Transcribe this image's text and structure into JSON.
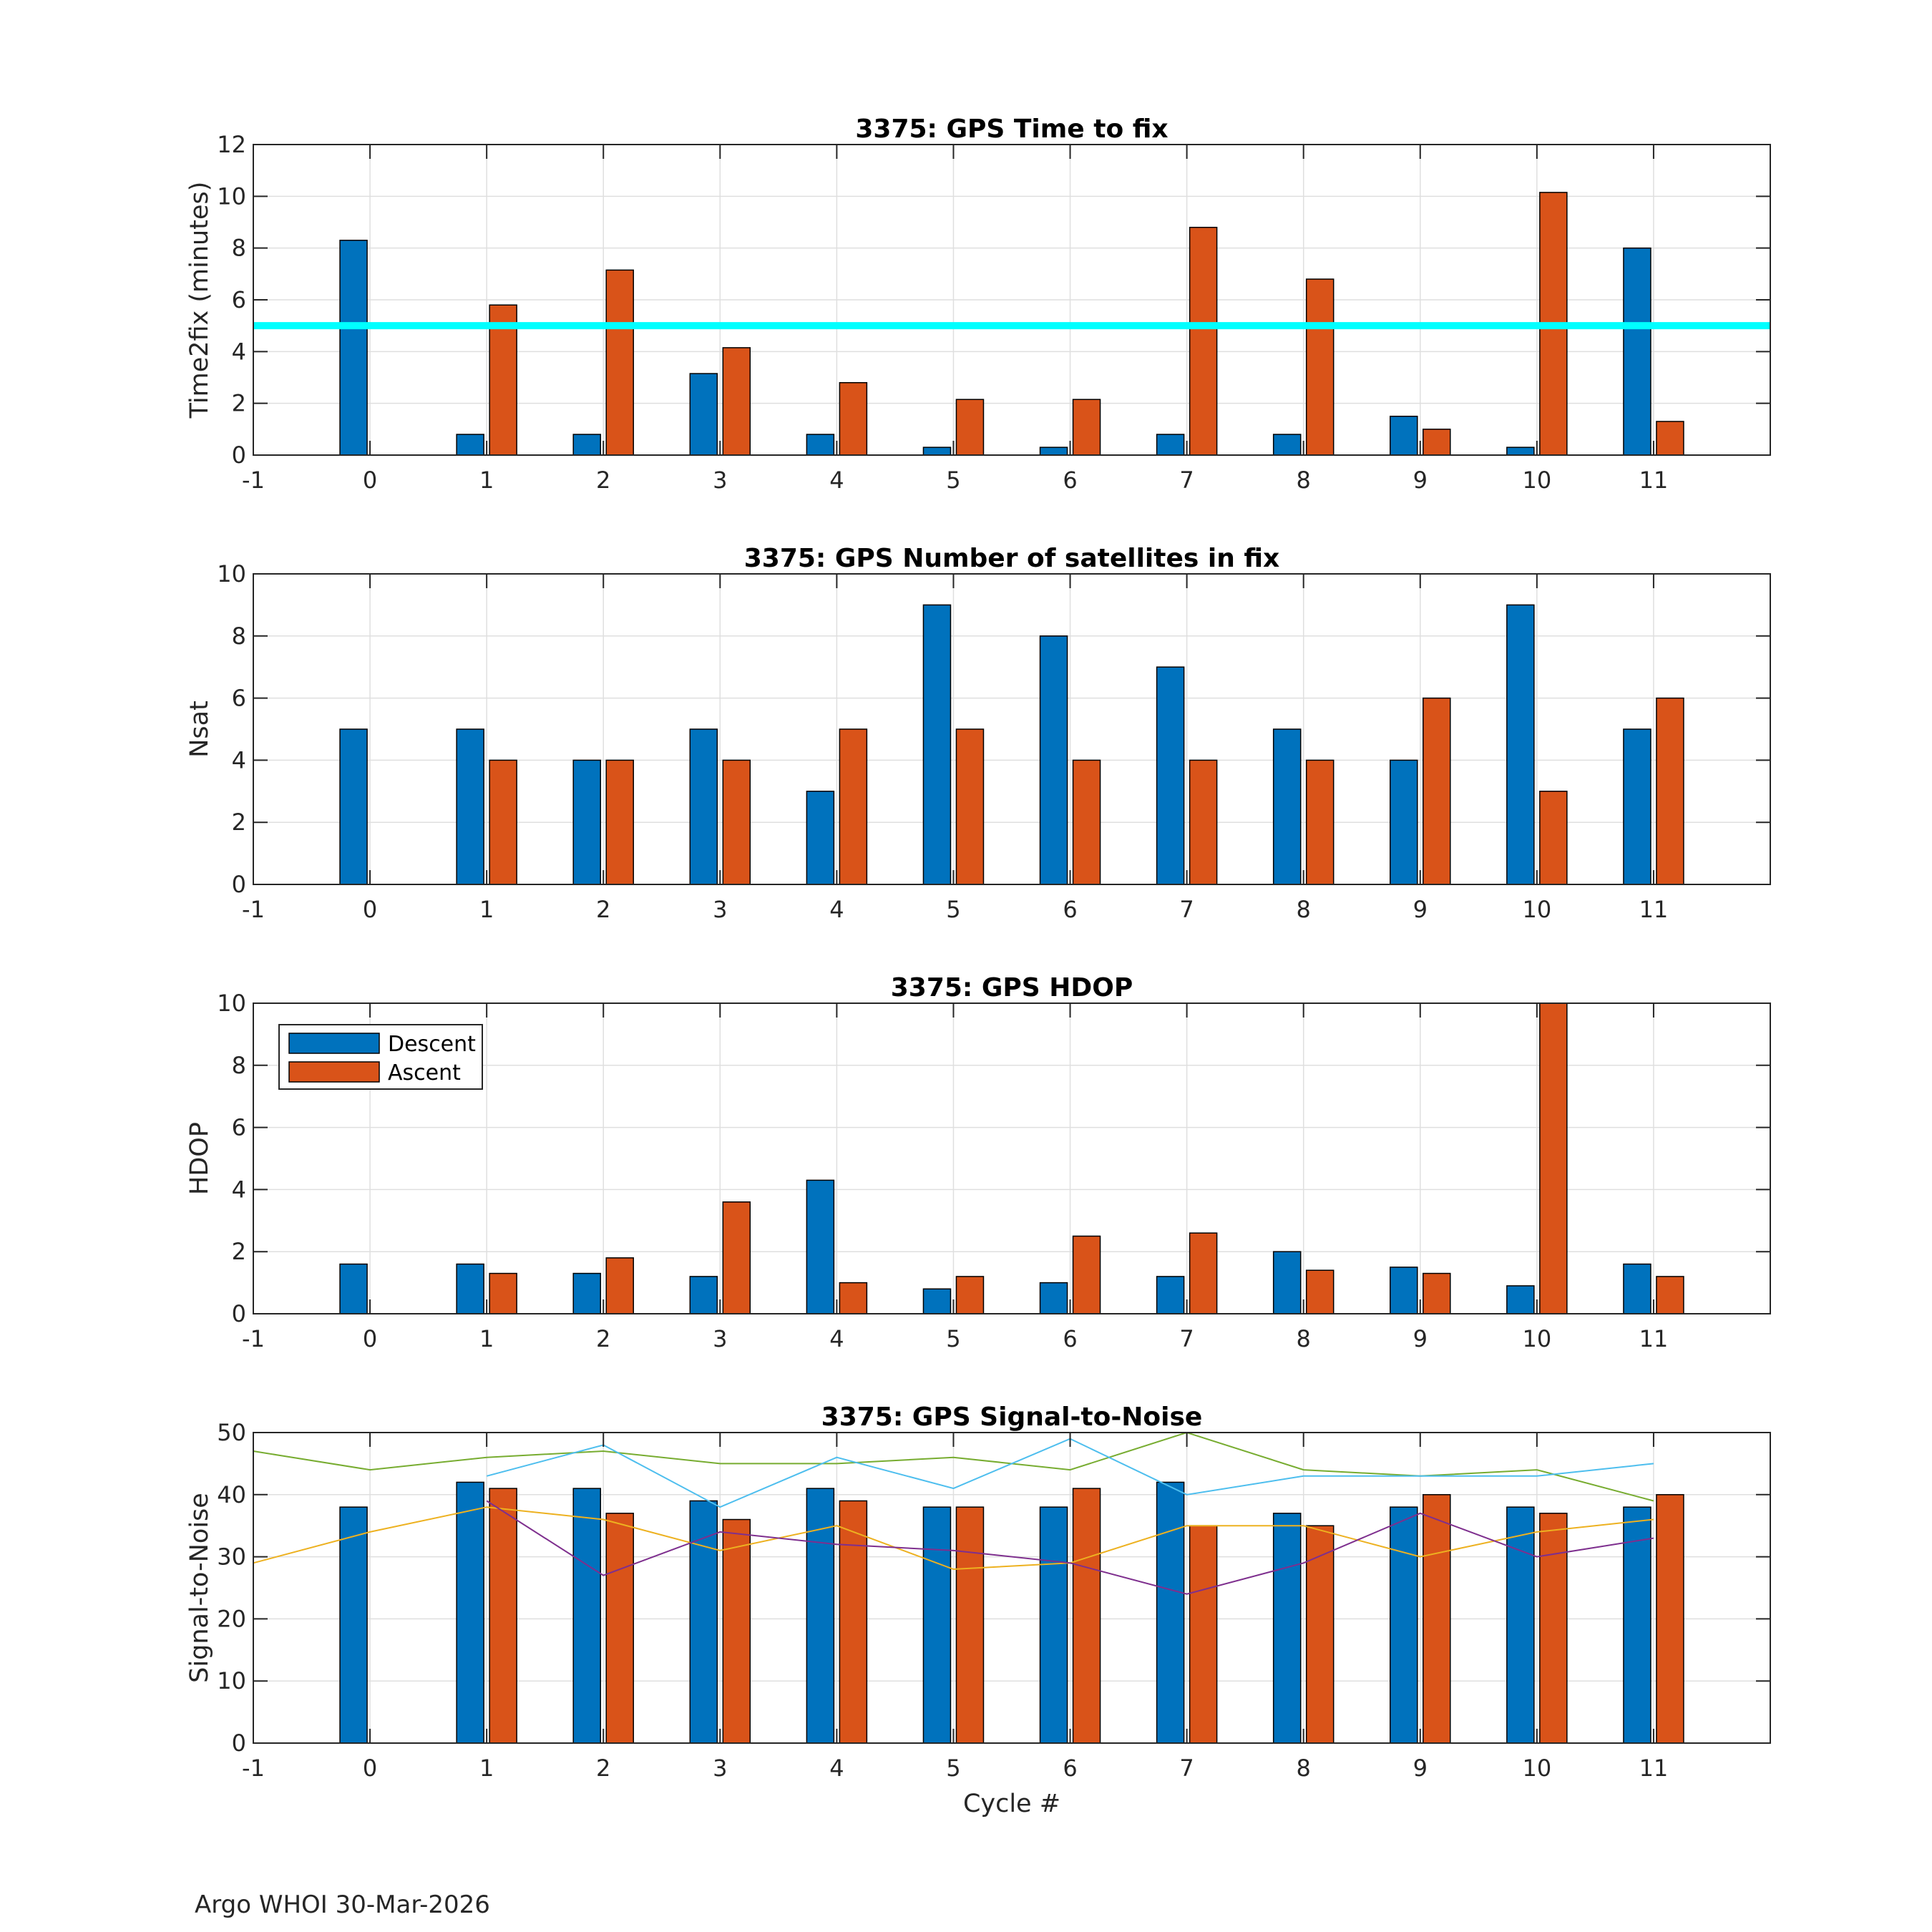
{
  "footer": "Argo WHOI 30-Mar-2026",
  "colors": {
    "descent": "#0072BD",
    "ascent": "#D95319",
    "threshold": "#00FFFF",
    "axis": "#262626",
    "grid": "#DFDFDF",
    "snr_lines": [
      "#77AC30",
      "#4DBEEE",
      "#EDB120",
      "#7E2F8E"
    ]
  },
  "chart_data": [
    {
      "type": "bar",
      "title": "3375: GPS Time to fix",
      "xlabel": "",
      "ylabel": "Time2fix (minutes)",
      "xlim": [
        -1,
        12
      ],
      "ylim": [
        0,
        12
      ],
      "xticks": [
        -1,
        0,
        1,
        2,
        3,
        4,
        5,
        6,
        7,
        8,
        9,
        10,
        11
      ],
      "yticks": [
        0,
        2,
        4,
        6,
        8,
        10,
        12
      ],
      "grid": true,
      "categories": [
        0,
        1,
        2,
        3,
        4,
        5,
        6,
        7,
        8,
        9,
        10,
        11
      ],
      "series": [
        {
          "name": "Descent",
          "values": [
            8.3,
            0.8,
            0.8,
            3.15,
            0.8,
            0.3,
            0.3,
            0.8,
            0.8,
            1.5,
            0.3,
            8.0
          ]
        },
        {
          "name": "Ascent",
          "values": [
            null,
            5.8,
            7.15,
            4.15,
            2.8,
            2.15,
            2.15,
            8.8,
            6.8,
            1.0,
            10.15,
            1.3
          ]
        }
      ],
      "hline": {
        "y": 5,
        "color": "#00FFFF"
      }
    },
    {
      "type": "bar",
      "title": "3375: GPS Number of satellites in fix",
      "xlabel": "",
      "ylabel": "Nsat",
      "xlim": [
        -1,
        12
      ],
      "ylim": [
        0,
        10
      ],
      "xticks": [
        -1,
        0,
        1,
        2,
        3,
        4,
        5,
        6,
        7,
        8,
        9,
        10,
        11
      ],
      "yticks": [
        0,
        2,
        4,
        6,
        8,
        10
      ],
      "grid": true,
      "categories": [
        0,
        1,
        2,
        3,
        4,
        5,
        6,
        7,
        8,
        9,
        10,
        11
      ],
      "series": [
        {
          "name": "Descent",
          "values": [
            5,
            5,
            4,
            5,
            3,
            9,
            8,
            7,
            5,
            4,
            9,
            5
          ]
        },
        {
          "name": "Ascent",
          "values": [
            null,
            4,
            4,
            4,
            5,
            5,
            4,
            4,
            4,
            6,
            3,
            6
          ]
        }
      ]
    },
    {
      "type": "bar",
      "title": "3375: GPS HDOP",
      "xlabel": "",
      "ylabel": "HDOP",
      "xlim": [
        -1,
        12
      ],
      "ylim": [
        0,
        10
      ],
      "xticks": [
        -1,
        0,
        1,
        2,
        3,
        4,
        5,
        6,
        7,
        8,
        9,
        10,
        11
      ],
      "yticks": [
        0,
        2,
        4,
        6,
        8,
        10
      ],
      "grid": true,
      "legend": {
        "position": "top-left",
        "entries": [
          "Descent",
          "Ascent"
        ]
      },
      "categories": [
        0,
        1,
        2,
        3,
        4,
        5,
        6,
        7,
        8,
        9,
        10,
        11
      ],
      "series": [
        {
          "name": "Descent",
          "values": [
            1.6,
            1.6,
            1.3,
            1.2,
            4.3,
            0.8,
            1.0,
            1.2,
            2.0,
            1.5,
            0.9,
            1.6
          ]
        },
        {
          "name": "Ascent",
          "values": [
            null,
            1.3,
            1.8,
            3.6,
            1.0,
            1.2,
            2.5,
            2.6,
            1.4,
            1.3,
            10.0,
            1.2
          ]
        }
      ]
    },
    {
      "type": "bar",
      "title": "3375: GPS Signal-to-Noise",
      "xlabel": "Cycle #",
      "ylabel": "Signal-to-Noise",
      "xlim": [
        -1,
        12
      ],
      "ylim": [
        0,
        50
      ],
      "xticks": [
        -1,
        0,
        1,
        2,
        3,
        4,
        5,
        6,
        7,
        8,
        9,
        10,
        11
      ],
      "yticks": [
        0,
        10,
        20,
        30,
        40,
        50
      ],
      "grid": true,
      "categories": [
        0,
        1,
        2,
        3,
        4,
        5,
        6,
        7,
        8,
        9,
        10,
        11
      ],
      "series": [
        {
          "name": "Descent",
          "values": [
            38,
            42,
            41,
            39,
            41,
            38,
            38,
            42,
            37,
            38,
            38,
            38
          ]
        },
        {
          "name": "Ascent",
          "values": [
            null,
            41,
            37,
            36,
            39,
            38,
            41,
            35,
            35,
            40,
            37,
            40
          ]
        }
      ],
      "lines": [
        {
          "color": "#77AC30",
          "x": [
            -1,
            0,
            1,
            2,
            3,
            4,
            5,
            6,
            7,
            8,
            9,
            10,
            11
          ],
          "y": [
            47,
            44,
            46,
            47,
            45,
            45,
            46,
            44,
            50,
            44,
            43,
            44,
            39
          ]
        },
        {
          "color": "#4DBEEE",
          "x": [
            1,
            2,
            3,
            4,
            5,
            6,
            7,
            8,
            9,
            10,
            11
          ],
          "y": [
            43,
            48,
            38,
            46,
            41,
            49,
            40,
            43,
            43,
            43,
            45
          ]
        },
        {
          "color": "#EDB120",
          "x": [
            -1,
            0,
            1,
            2,
            3,
            4,
            5,
            6,
            7,
            8,
            9,
            10,
            11
          ],
          "y": [
            29,
            34,
            38,
            36,
            31,
            35,
            28,
            29,
            35,
            35,
            30,
            34,
            36
          ]
        },
        {
          "color": "#7E2F8E",
          "x": [
            1,
            2,
            3,
            4,
            5,
            6,
            7,
            8,
            9,
            10,
            11
          ],
          "y": [
            39,
            27,
            34,
            32,
            31,
            29,
            24,
            29,
            37,
            30,
            33
          ]
        }
      ]
    }
  ]
}
